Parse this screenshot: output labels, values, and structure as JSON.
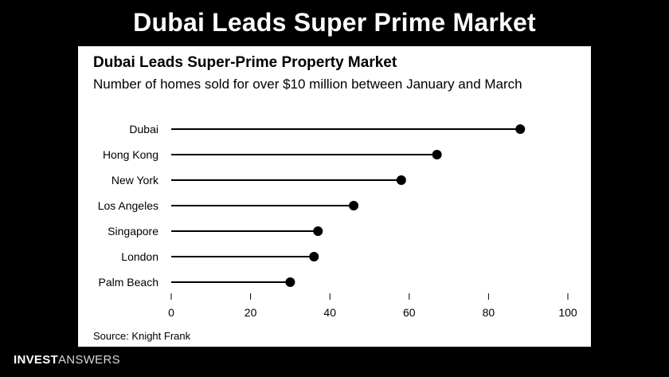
{
  "banner": {
    "title": "Dubai Leads Super Prime Market"
  },
  "chart_data": {
    "type": "lollipop",
    "title": "Dubai Leads Super-Prime Property Market",
    "subtitle": "Number of homes sold for over $10 million between January and March",
    "categories": [
      "Dubai",
      "Hong Kong",
      "New York",
      "Los Angeles",
      "Singapore",
      "London",
      "Palm Beach"
    ],
    "values": [
      88,
      67,
      58,
      46,
      37,
      36,
      30
    ],
    "xlim": [
      0,
      100
    ],
    "xticks": [
      0,
      20,
      40,
      60,
      80,
      100
    ],
    "xtick_labels": [
      "0",
      "20",
      "40",
      "60",
      "80",
      "100"
    ],
    "grid": false,
    "legend": "none",
    "source": "Source: Knight Frank",
    "colors": {
      "line": "#000000",
      "dot": "#000000",
      "background": "#ffffff"
    }
  },
  "branding": {
    "part1": "INVEST",
    "part2": "ANSWERS"
  }
}
